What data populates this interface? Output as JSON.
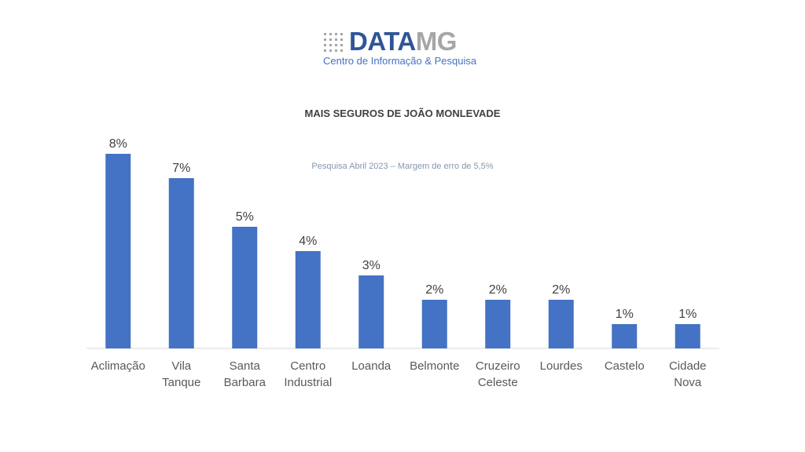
{
  "logo": {
    "word_main": "DATA",
    "word_accent": "MG",
    "subtitle": "Centro de Informação & Pesquisa"
  },
  "colors": {
    "bar": "#4472c4",
    "logo_main": "#2f5597",
    "logo_accent": "#a6a6a6"
  },
  "chart_data": {
    "type": "bar",
    "title": "MAIS SEGUROS DE JOÃO MONLEVADE",
    "subtitle": "Pesquisa Abril 2023 – Margem de erro de 5,5%",
    "categories": [
      [
        "Aclimação"
      ],
      [
        "Vila",
        "Tanque"
      ],
      [
        "Santa",
        "Barbara"
      ],
      [
        "Centro",
        "Industrial"
      ],
      [
        "Loanda"
      ],
      [
        "Belmonte"
      ],
      [
        "Cruzeiro",
        "Celeste"
      ],
      [
        "Lourdes"
      ],
      [
        "Castelo"
      ],
      [
        "Cidade",
        "Nova"
      ]
    ],
    "values": [
      8,
      7,
      5,
      4,
      3,
      2,
      2,
      2,
      1,
      1
    ],
    "value_labels": [
      "8%",
      "7%",
      "5%",
      "4%",
      "3%",
      "2%",
      "2%",
      "2%",
      "1%",
      "1%"
    ],
    "xlabel": "",
    "ylabel": "",
    "ylim": [
      0,
      8
    ],
    "grid": false,
    "legend": "none"
  }
}
